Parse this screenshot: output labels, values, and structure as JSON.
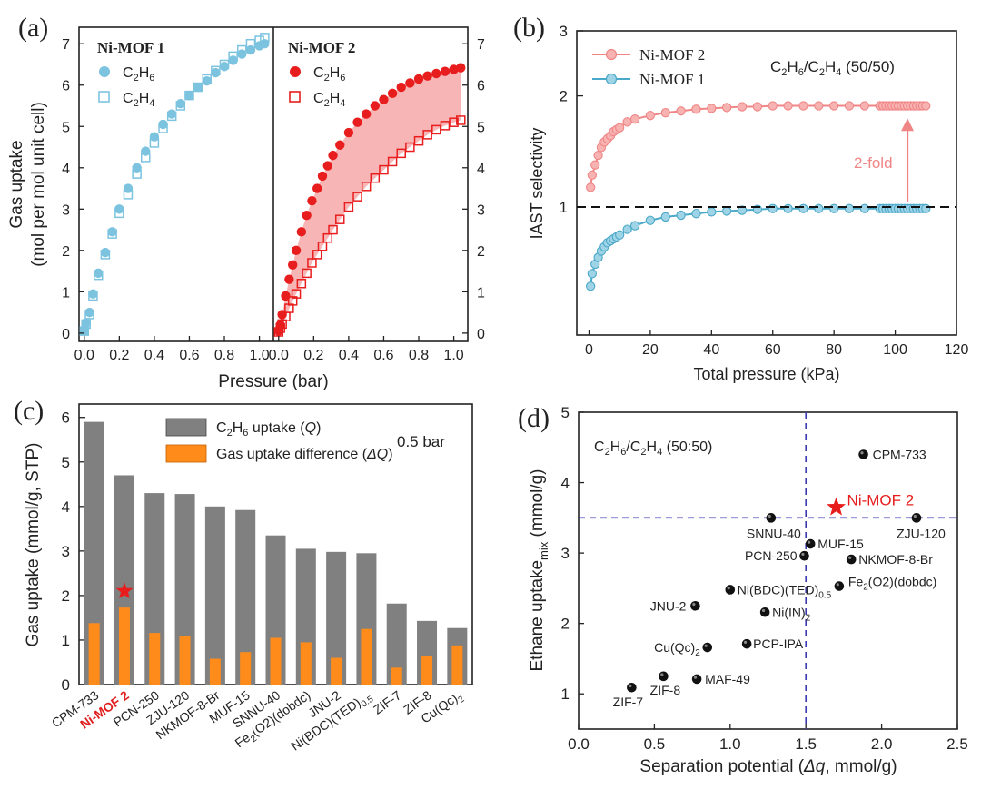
{
  "chart_data": [
    {
      "panel": "(a)",
      "type": "scatter",
      "xlabel": "Pressure (bar)",
      "ylabel_line1": "Gas uptake",
      "ylabel_line2": "(mol per mol unit cell)",
      "xticks": [
        "0.0",
        "0.2",
        "0.4",
        "0.6",
        "0.8",
        "1.0"
      ],
      "yticks": [
        "0",
        "1",
        "2",
        "3",
        "4",
        "5",
        "6",
        "7"
      ],
      "xlim": [
        -0.03,
        1.08
      ],
      "ylim": [
        -0.2,
        7.4
      ],
      "left_title": "Ni-MOF 1",
      "right_title": "Ni-MOF 2",
      "legend": {
        "c2h6": "C2H6",
        "c2h4": "C2H4"
      },
      "colors": {
        "mof1": "#7cc3df",
        "mof2": "#e81e1e",
        "fill": "#f7a8a8"
      },
      "series": [
        {
          "name": "C2H6",
          "panel": "Ni-MOF 1",
          "marker": "filled-circle",
          "x": [
            0.0,
            0.01,
            0.03,
            0.05,
            0.08,
            0.12,
            0.16,
            0.2,
            0.25,
            0.3,
            0.35,
            0.4,
            0.45,
            0.5,
            0.55,
            0.6,
            0.65,
            0.7,
            0.75,
            0.8,
            0.85,
            0.9,
            0.95,
            1.0,
            1.03
          ],
          "y": [
            0.05,
            0.25,
            0.5,
            0.95,
            1.45,
            1.95,
            2.45,
            3.0,
            3.5,
            4.0,
            4.4,
            4.75,
            5.05,
            5.3,
            5.55,
            5.75,
            5.95,
            6.1,
            6.3,
            6.45,
            6.6,
            6.75,
            6.85,
            6.95,
            7.0
          ]
        },
        {
          "name": "C2H4",
          "panel": "Ni-MOF 1",
          "marker": "open-square",
          "x": [
            0.0,
            0.01,
            0.03,
            0.05,
            0.08,
            0.12,
            0.16,
            0.2,
            0.25,
            0.3,
            0.35,
            0.4,
            0.45,
            0.5,
            0.55,
            0.6,
            0.65,
            0.7,
            0.75,
            0.8,
            0.85,
            0.9,
            0.95,
            1.0,
            1.03
          ],
          "y": [
            0.05,
            0.22,
            0.45,
            0.9,
            1.4,
            1.9,
            2.4,
            2.9,
            3.35,
            3.85,
            4.25,
            4.6,
            4.95,
            5.25,
            5.5,
            5.75,
            5.95,
            6.15,
            6.35,
            6.5,
            6.7,
            6.85,
            7.0,
            7.08,
            7.15
          ]
        },
        {
          "name": "C2H6",
          "panel": "Ni-MOF 2",
          "marker": "filled-circle",
          "x": [
            0.0,
            0.01,
            0.02,
            0.04,
            0.06,
            0.08,
            0.1,
            0.13,
            0.16,
            0.19,
            0.22,
            0.25,
            0.28,
            0.31,
            0.35,
            0.4,
            0.45,
            0.5,
            0.55,
            0.6,
            0.65,
            0.7,
            0.75,
            0.8,
            0.85,
            0.9,
            0.95,
            1.0,
            1.04
          ],
          "y": [
            0.05,
            0.2,
            0.45,
            0.9,
            1.3,
            1.65,
            2.0,
            2.45,
            2.85,
            3.2,
            3.5,
            3.8,
            4.05,
            4.3,
            4.55,
            4.85,
            5.1,
            5.3,
            5.5,
            5.65,
            5.8,
            5.95,
            6.05,
            6.15,
            6.22,
            6.28,
            6.33,
            6.38,
            6.42
          ]
        },
        {
          "name": "C2H4",
          "panel": "Ni-MOF 2",
          "marker": "open-square",
          "x": [
            0.0,
            0.01,
            0.02,
            0.04,
            0.06,
            0.08,
            0.1,
            0.13,
            0.16,
            0.19,
            0.22,
            0.25,
            0.28,
            0.31,
            0.35,
            0.4,
            0.45,
            0.5,
            0.55,
            0.6,
            0.65,
            0.7,
            0.75,
            0.8,
            0.85,
            0.9,
            0.95,
            1.0,
            1.04
          ],
          "y": [
            0.03,
            0.12,
            0.22,
            0.4,
            0.6,
            0.78,
            0.95,
            1.2,
            1.45,
            1.7,
            1.9,
            2.1,
            2.3,
            2.5,
            2.75,
            3.05,
            3.3,
            3.55,
            3.75,
            3.95,
            4.15,
            4.35,
            4.5,
            4.65,
            4.8,
            4.92,
            5.02,
            5.1,
            5.15
          ]
        }
      ]
    },
    {
      "panel": "(b)",
      "type": "line",
      "xlabel": "Total pressure (kPa)",
      "ylabel": "IAST selectivity",
      "xticks": [
        "0",
        "20",
        "40",
        "60",
        "80",
        "100",
        "120"
      ],
      "yticks": [
        "1",
        "2",
        "3"
      ],
      "xlim": [
        -4,
        120
      ],
      "ylim": [
        0.45,
        3
      ],
      "yscale": "log",
      "annotation_title": "C2H6/C2H4 (50/50)",
      "fold_label": "2-fold",
      "reference_line_y": 1,
      "colors": {
        "mof2": "#f08585",
        "mof1": "#4aa8c8",
        "arrow": "#f08585"
      },
      "series": [
        {
          "name": "Ni-MOF 2",
          "x": [
            0.5,
            1,
            2,
            3,
            4,
            5,
            6,
            7,
            8,
            9,
            10,
            12.5,
            15,
            20,
            25,
            30,
            35,
            40,
            45,
            50,
            55,
            60,
            65,
            70,
            75,
            80,
            85,
            90,
            95,
            96,
            97,
            98,
            99,
            100,
            101,
            102,
            103,
            104,
            105,
            106,
            107,
            108,
            109,
            110
          ],
          "y": [
            1.13,
            1.22,
            1.3,
            1.38,
            1.45,
            1.5,
            1.53,
            1.56,
            1.6,
            1.62,
            1.64,
            1.7,
            1.73,
            1.77,
            1.8,
            1.82,
            1.84,
            1.85,
            1.86,
            1.87,
            1.87,
            1.88,
            1.88,
            1.88,
            1.88,
            1.88,
            1.88,
            1.88,
            1.88,
            1.88,
            1.88,
            1.88,
            1.88,
            1.88,
            1.88,
            1.88,
            1.88,
            1.88,
            1.88,
            1.88,
            1.88,
            1.88,
            1.88,
            1.88
          ]
        },
        {
          "name": "Ni-MOF 1",
          "x": [
            0.5,
            1,
            2,
            3,
            4,
            5,
            6,
            7,
            8,
            9,
            10,
            12.5,
            15,
            20,
            25,
            30,
            35,
            40,
            45,
            50,
            55,
            60,
            65,
            70,
            75,
            80,
            85,
            90,
            95,
            96,
            97,
            98,
            99,
            100,
            101,
            102,
            103,
            104,
            105,
            106,
            107,
            108,
            109,
            110
          ],
          "y": [
            0.61,
            0.66,
            0.7,
            0.73,
            0.76,
            0.78,
            0.8,
            0.81,
            0.82,
            0.83,
            0.84,
            0.87,
            0.89,
            0.92,
            0.94,
            0.95,
            0.96,
            0.97,
            0.975,
            0.98,
            0.985,
            0.99,
            0.99,
            0.99,
            0.99,
            0.99,
            0.99,
            0.99,
            0.99,
            0.99,
            0.99,
            0.99,
            0.99,
            0.99,
            0.99,
            0.99,
            0.99,
            0.99,
            0.99,
            0.99,
            0.99,
            0.99,
            0.99,
            0.99
          ]
        }
      ]
    },
    {
      "panel": "(c)",
      "type": "bar",
      "ylabel": "Gas uptake (mmol/g, STP)",
      "yticks": [
        "0",
        "1",
        "2",
        "3",
        "4",
        "5",
        "6"
      ],
      "ylim": [
        0,
        6.3
      ],
      "condition_label": "0.5 bar",
      "highlight_category": "Ni-MOF 2",
      "highlight_color": "#e02020",
      "star_value": 2.1,
      "colors": {
        "q": "#808080",
        "dq": "#ff8c1a"
      },
      "categories": [
        {
          "base": "CPM-733",
          "sub": "",
          "tail": ""
        },
        {
          "base": "Ni-MOF 2",
          "sub": "",
          "tail": ""
        },
        {
          "base": "PCN-250",
          "sub": "",
          "tail": ""
        },
        {
          "base": "ZJU-120",
          "sub": "",
          "tail": ""
        },
        {
          "base": "NKMOF-8-Br",
          "sub": "",
          "tail": ""
        },
        {
          "base": "MUF-15",
          "sub": "",
          "tail": ""
        },
        {
          "base": "SNNU-40",
          "sub": "",
          "tail": ""
        },
        {
          "base": "Fe",
          "sub": "2",
          "tail": "(O2)(dobdc)"
        },
        {
          "base": "JNU-2",
          "sub": "",
          "tail": ""
        },
        {
          "base": "Ni(BDC)(TED)",
          "sub": "0.5",
          "tail": ""
        },
        {
          "base": "ZIF-7",
          "sub": "",
          "tail": ""
        },
        {
          "base": "ZIF-8",
          "sub": "",
          "tail": ""
        },
        {
          "base": "Cu(Qc)",
          "sub": "2",
          "tail": ""
        }
      ],
      "series": [
        {
          "name": "C2H6 uptake (Q)",
          "values": [
            5.9,
            4.7,
            4.3,
            4.28,
            4.0,
            3.92,
            3.35,
            3.05,
            2.98,
            2.95,
            1.82,
            1.43,
            1.27
          ]
        },
        {
          "name": "Gas uptake difference (ΔQ)",
          "values": [
            1.38,
            1.73,
            1.16,
            1.08,
            0.58,
            0.73,
            1.05,
            0.95,
            0.6,
            1.25,
            0.38,
            0.65,
            0.88
          ]
        }
      ],
      "legend": {
        "q_base": "C2H6 uptake (",
        "q_var": "Q",
        "q_end": ")",
        "dq_base": "Gas uptake difference (",
        "dq_var": "ΔQ",
        "dq_end": ")"
      }
    },
    {
      "panel": "(d)",
      "type": "scatter",
      "xlabel": "Separation potential (Δq, mmol/g)",
      "ylabel": "Ethane uptake mix (mmol/g)",
      "xticks": [
        "0.0",
        "0.5",
        "1.0",
        "1.5",
        "2.0",
        "2.5"
      ],
      "yticks": [
        "1",
        "2",
        "3",
        "4",
        "5"
      ],
      "xlim": [
        0,
        2.5
      ],
      "ylim": [
        0.5,
        5
      ],
      "annotation_title": "C2H6/C2H4 (50:50)",
      "reference_lines": {
        "x": 1.5,
        "y": 3.5
      },
      "colors": {
        "point": "#111111",
        "highlight": "#e81e1e",
        "ref": "#3a3ab0"
      },
      "points": [
        {
          "label": "CPM-733",
          "x": 1.88,
          "y": 4.4
        },
        {
          "label": "Ni-MOF 2",
          "x": 1.7,
          "y": 3.65,
          "highlight": true
        },
        {
          "label": "SNNU-40",
          "x": 1.27,
          "y": 3.5
        },
        {
          "label": "ZJU-120",
          "x": 2.23,
          "y": 3.5
        },
        {
          "label": "MUF-15",
          "x": 1.53,
          "y": 3.13
        },
        {
          "label": "PCN-250",
          "x": 1.49,
          "y": 2.96
        },
        {
          "label": "NKMOF-8-Br",
          "x": 1.8,
          "y": 2.91
        },
        {
          "label": "Ni(BDC)(TED)0.5",
          "x": 1.0,
          "y": 2.48
        },
        {
          "label": "Fe2(O2)(dobdc)",
          "x": 1.72,
          "y": 2.53
        },
        {
          "label": "JNU-2",
          "x": 0.77,
          "y": 2.25
        },
        {
          "label": "Ni(IN)2",
          "x": 1.23,
          "y": 2.16
        },
        {
          "label": "Cu(Qc)2",
          "x": 0.85,
          "y": 1.66
        },
        {
          "label": "PCP-IPA",
          "x": 1.11,
          "y": 1.71
        },
        {
          "label": "ZIF-8",
          "x": 0.56,
          "y": 1.25
        },
        {
          "label": "MAF-49",
          "x": 0.78,
          "y": 1.21
        },
        {
          "label": "ZIF-7",
          "x": 0.35,
          "y": 1.09
        }
      ]
    }
  ]
}
